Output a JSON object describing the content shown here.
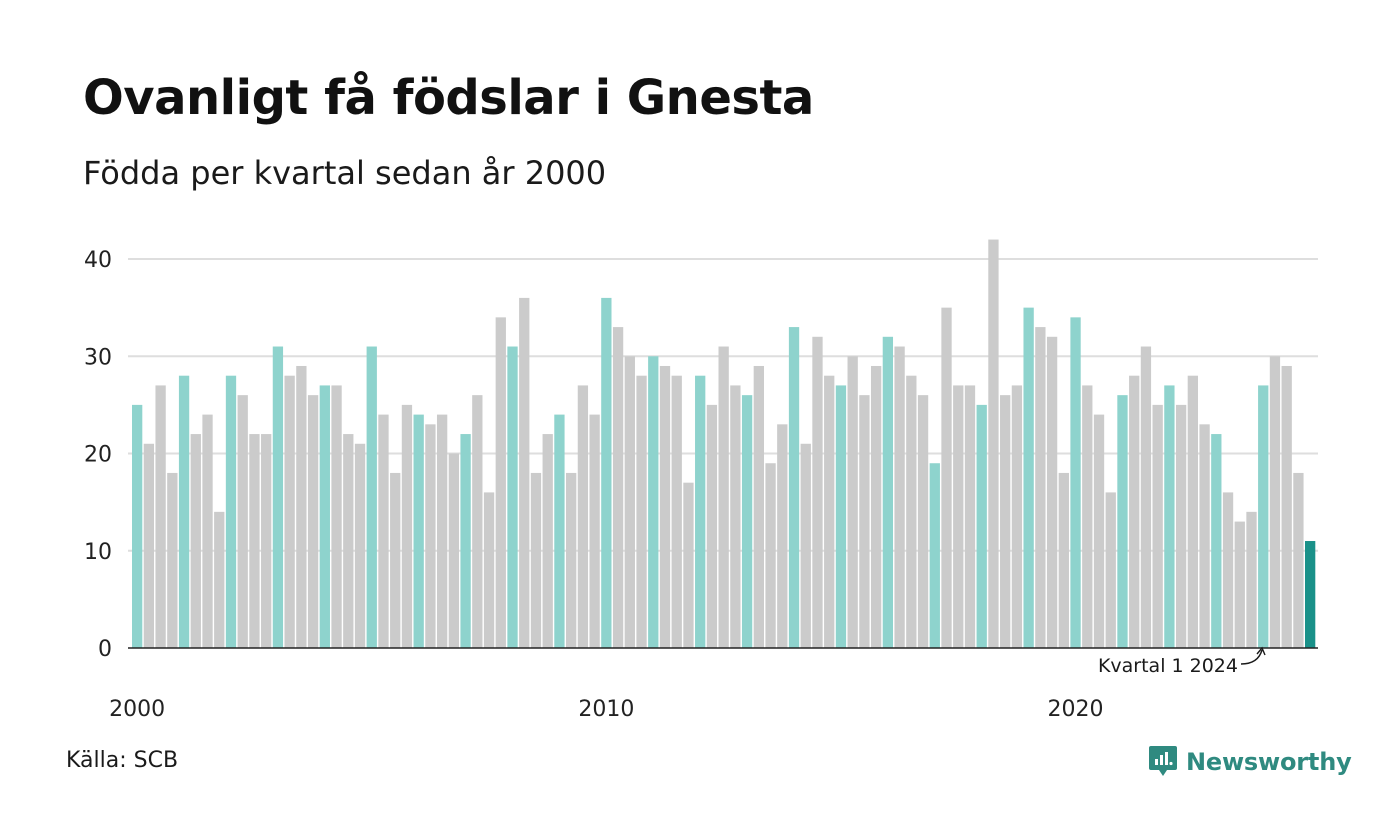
{
  "title": "Ovanligt få födslar i Gnesta",
  "subtitle": "Födda per kvartal sedan år 2000",
  "source": "Källa: SCB",
  "brand": {
    "name": "Newsworthy",
    "icon": "newsworthy-logo-icon"
  },
  "colors": {
    "q1": "#8ed3cd",
    "other": "#cbcbcb",
    "highlight": "#1a9189",
    "grid": "#dedede",
    "axis": "#222222"
  },
  "chart_data": {
    "type": "bar",
    "title": "Ovanligt få födslar i Gnesta",
    "subtitle": "Födda per kvartal sedan år 2000",
    "xlabel": "",
    "ylabel": "",
    "ylim": [
      0,
      40
    ],
    "yticks": [
      "0",
      "10",
      "20",
      "30",
      "40"
    ],
    "xticks": [
      {
        "label": "2000",
        "year": 2000
      },
      {
        "label": "2010",
        "year": 2010
      },
      {
        "label": "2020",
        "year": 2020
      }
    ],
    "grid": true,
    "start": "2000 Q1",
    "annotation": {
      "text": "Kvartal 1 2024",
      "target": "2024 Q1"
    },
    "values": [
      25,
      21,
      27,
      18,
      28,
      22,
      24,
      14,
      28,
      26,
      22,
      22,
      31,
      28,
      29,
      26,
      27,
      27,
      22,
      21,
      31,
      24,
      18,
      25,
      24,
      23,
      24,
      20,
      22,
      26,
      16,
      34,
      31,
      36,
      18,
      22,
      24,
      18,
      27,
      24,
      36,
      33,
      30,
      28,
      30,
      29,
      28,
      17,
      28,
      25,
      31,
      27,
      26,
      29,
      19,
      23,
      33,
      21,
      32,
      28,
      27,
      30,
      26,
      29,
      32,
      31,
      28,
      26,
      19,
      35,
      27,
      27,
      25,
      42,
      26,
      27,
      35,
      33,
      32,
      18,
      34,
      27,
      24,
      16,
      26,
      28,
      31,
      25,
      27,
      25,
      28,
      23,
      22,
      16,
      13,
      14,
      27,
      30,
      29,
      18,
      11
    ]
  }
}
